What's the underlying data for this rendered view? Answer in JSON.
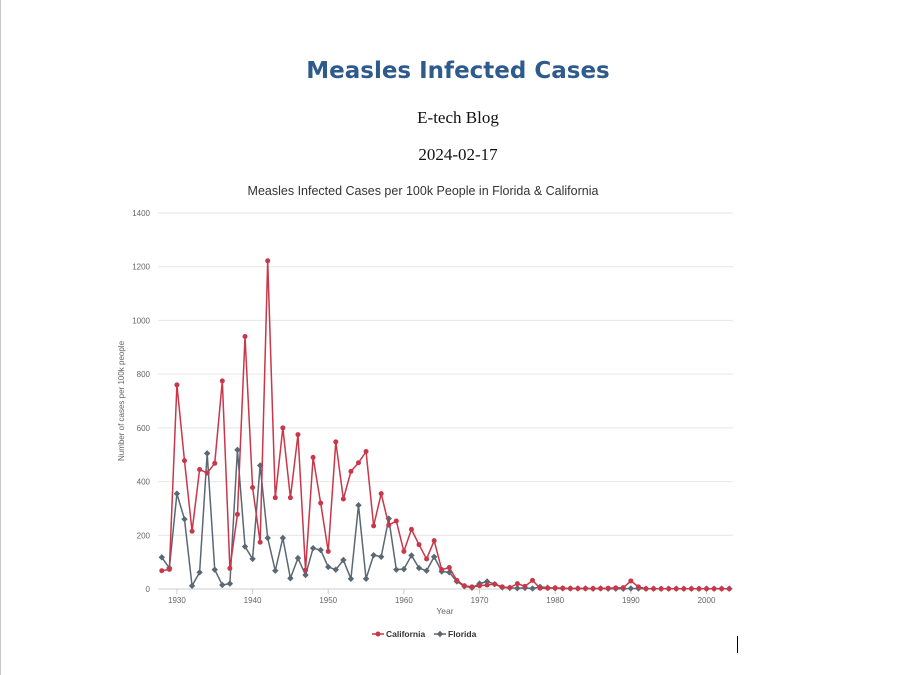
{
  "document": {
    "title": "Measles Infected Cases",
    "author": "E-tech Blog",
    "date": "2024-02-17"
  },
  "colors": {
    "title": "#2e5a8c",
    "california": "#c8374a",
    "florida": "#5a6873",
    "grid": "#e6e6e6"
  },
  "chart_data": {
    "type": "line",
    "title": "Measles Infected Cases per 100k People in Florida & California",
    "xlabel": "Year",
    "ylabel": "Number of cases per 100k people",
    "xlim": [
      1927.5,
      2003.5
    ],
    "ylim": [
      0,
      1400
    ],
    "xticks": [
      1930,
      1940,
      1950,
      1960,
      1970,
      1980,
      1990,
      2000
    ],
    "yticks": [
      0,
      200,
      400,
      600,
      800,
      1000,
      1200,
      1400
    ],
    "grid": true,
    "legend_position": "bottom-center",
    "x": [
      1928,
      1929,
      1930,
      1931,
      1932,
      1933,
      1934,
      1935,
      1936,
      1937,
      1938,
      1939,
      1940,
      1941,
      1942,
      1943,
      1944,
      1945,
      1946,
      1947,
      1948,
      1949,
      1950,
      1951,
      1952,
      1953,
      1954,
      1955,
      1956,
      1957,
      1958,
      1959,
      1960,
      1961,
      1962,
      1963,
      1964,
      1965,
      1966,
      1967,
      1968,
      1969,
      1970,
      1971,
      1972,
      1973,
      1974,
      1975,
      1976,
      1977,
      1978,
      1979,
      1980,
      1981,
      1982,
      1983,
      1984,
      1985,
      1986,
      1987,
      1988,
      1989,
      1990,
      1991,
      1992,
      1993,
      1994,
      1995,
      1996,
      1997,
      1998,
      1999,
      2000,
      2001,
      2002,
      2003
    ],
    "series": [
      {
        "name": "California",
        "values": [
          68,
          73,
          760,
          478,
          215,
          445,
          432,
          468,
          775,
          77,
          278,
          940,
          378,
          174,
          1222,
          340,
          600,
          340,
          575,
          70,
          490,
          320,
          140,
          548,
          335,
          438,
          470,
          512,
          235,
          355,
          238,
          253,
          140,
          222,
          165,
          112,
          180,
          72,
          80,
          32,
          12,
          8,
          12,
          15,
          18,
          8,
          5,
          20,
          10,
          32,
          3,
          3,
          4,
          3,
          2,
          2,
          2,
          2,
          2,
          3,
          4,
          5,
          30,
          8,
          1,
          1,
          1,
          1,
          1,
          1,
          1,
          1,
          1,
          1,
          1,
          1
        ]
      },
      {
        "name": "Florida",
        "values": [
          118,
          78,
          355,
          260,
          12,
          62,
          505,
          72,
          15,
          20,
          518,
          158,
          112,
          460,
          190,
          68,
          190,
          40,
          115,
          52,
          152,
          145,
          82,
          72,
          108,
          38,
          312,
          38,
          126,
          120,
          262,
          72,
          74,
          125,
          78,
          68,
          120,
          65,
          62,
          28,
          10,
          5,
          20,
          28,
          18,
          6,
          4,
          3,
          4,
          2,
          8,
          5,
          3,
          2,
          2,
          2,
          2,
          1,
          2,
          1,
          1,
          1,
          2,
          2,
          1,
          1,
          1,
          1,
          1,
          1,
          1,
          1,
          1,
          1,
          1,
          1
        ]
      }
    ]
  }
}
